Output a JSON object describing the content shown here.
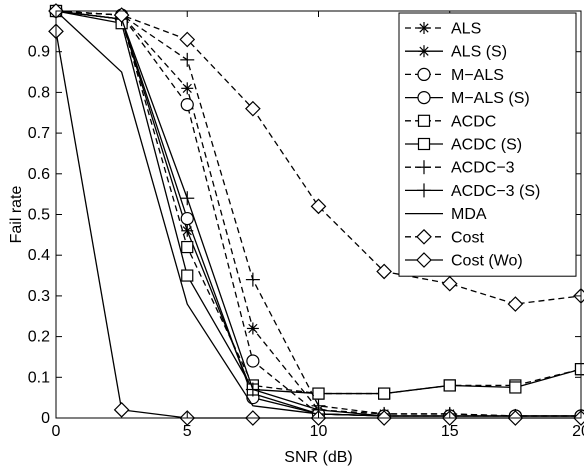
{
  "chart_data": {
    "type": "line",
    "title": "",
    "xlabel": "SNR (dB)",
    "ylabel": "Fail rate",
    "xlim": [
      0,
      20
    ],
    "ylim": [
      0,
      1
    ],
    "x_ticks": [
      0,
      5,
      10,
      15,
      20
    ],
    "y_ticks": [
      0,
      0.1,
      0.2,
      0.3,
      0.4,
      0.5,
      0.6,
      0.7,
      0.8,
      0.9
    ],
    "x_tick_labels": [
      "0",
      "5",
      "10",
      "15",
      "20"
    ],
    "y_tick_labels": [
      "0",
      "0.1",
      "0.2",
      "0.3",
      "0.4",
      "0.5",
      "0.6",
      "0.7",
      "0.8",
      "0.9"
    ],
    "grid": false,
    "legend_position": "top-right",
    "x": [
      0,
      2.5,
      5,
      7.5,
      10,
      12.5,
      15,
      17.5,
      20
    ],
    "series": [
      {
        "name": "ALS",
        "marker": "asterisk",
        "dash": "dashed",
        "values": [
          1.0,
          0.99,
          0.81,
          0.22,
          0.02,
          0.01,
          0.01,
          0.005,
          0.005
        ]
      },
      {
        "name": "ALS (S)",
        "marker": "asterisk",
        "dash": "solid",
        "values": [
          1.0,
          0.98,
          0.46,
          0.06,
          0.01,
          0.005,
          0.005,
          0.005,
          0.005
        ]
      },
      {
        "name": "M−ALS",
        "marker": "circle",
        "dash": "dashed",
        "values": [
          1.0,
          0.99,
          0.77,
          0.14,
          0.01,
          0.005,
          0.005,
          0.005,
          0.005
        ]
      },
      {
        "name": "M−ALS (S)",
        "marker": "circle",
        "dash": "solid",
        "values": [
          1.0,
          0.98,
          0.49,
          0.05,
          0.01,
          0.005,
          0.005,
          0.005,
          0.005
        ]
      },
      {
        "name": "ACDC",
        "marker": "square",
        "dash": "dashed",
        "values": [
          1.0,
          0.98,
          0.42,
          0.08,
          0.06,
          0.06,
          0.08,
          0.08,
          0.12
        ]
      },
      {
        "name": "ACDC (S)",
        "marker": "square",
        "dash": "solid",
        "values": [
          1.0,
          0.97,
          0.35,
          0.07,
          0.06,
          0.06,
          0.08,
          0.075,
          0.12
        ]
      },
      {
        "name": "ACDC−3",
        "marker": "plus",
        "dash": "dashed",
        "values": [
          1.0,
          0.99,
          0.88,
          0.34,
          0.03,
          0.01,
          0.01,
          0.005,
          0.005
        ]
      },
      {
        "name": "ACDC−3 (S)",
        "marker": "plus",
        "dash": "solid",
        "values": [
          1.0,
          0.98,
          0.54,
          0.07,
          0.02,
          0.005,
          0.005,
          0.005,
          0.005
        ]
      },
      {
        "name": "MDA",
        "marker": "none",
        "dash": "solid",
        "values": [
          1.0,
          0.85,
          0.28,
          0.03,
          0.01,
          0.005,
          0.005,
          0.005,
          0.005
        ]
      },
      {
        "name": "Cost",
        "marker": "diamond",
        "dash": "dashed",
        "values": [
          1.0,
          0.99,
          0.93,
          0.76,
          0.52,
          0.36,
          0.33,
          0.28,
          0.3
        ]
      },
      {
        "name": "Cost (Wo)",
        "marker": "diamond",
        "dash": "solid",
        "values": [
          0.95,
          0.02,
          0.0,
          0.0,
          0.0,
          0.0,
          0.0,
          0.0,
          0.0
        ]
      }
    ]
  }
}
